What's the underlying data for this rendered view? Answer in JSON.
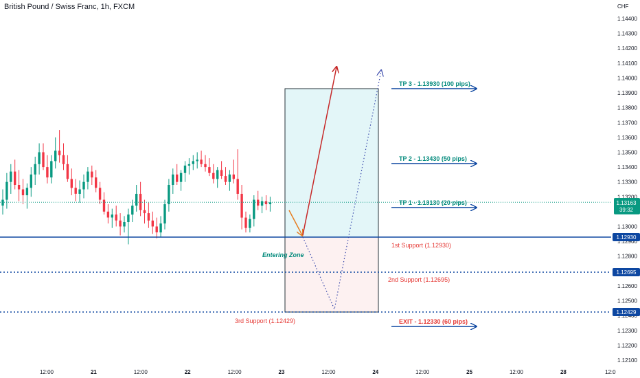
{
  "header": {
    "title": "British Pound / Swiss Franc, 1h, FXCM"
  },
  "chart_data": {
    "type": "candlestick",
    "currency": "CHF",
    "y_ticks": [
      "1.14400",
      "1.14300",
      "1.14200",
      "1.14100",
      "1.14000",
      "1.13900",
      "1.13800",
      "1.13700",
      "1.13600",
      "1.13500",
      "1.13400",
      "1.13300",
      "1.13200",
      "1.13100",
      "1.13000",
      "1.12900",
      "1.12800",
      "1.12700",
      "1.12600",
      "1.12500",
      "1.12400",
      "1.12300",
      "1.12200",
      "1.12100"
    ],
    "x_ticks": [
      "12:00",
      "21",
      "12:00",
      "22",
      "12:00",
      "23",
      "12:00",
      "24",
      "12:00",
      "25",
      "12:00",
      "28",
      "12:0"
    ],
    "ylim": [
      1.1208,
      1.1451
    ],
    "price": {
      "label": "1.13163",
      "countdown": "39:32",
      "value": 1.13163,
      "color": "#089981"
    },
    "candles": [
      [
        1.1314,
        1.1325,
        1.1308,
        1.1318
      ],
      [
        1.1318,
        1.1336,
        1.1312,
        1.133
      ],
      [
        1.133,
        1.1342,
        1.1322,
        1.1337
      ],
      [
        1.1337,
        1.1345,
        1.1325,
        1.1328
      ],
      [
        1.1328,
        1.1338,
        1.1317,
        1.1325
      ],
      [
        1.1325,
        1.1332,
        1.1315,
        1.1321
      ],
      [
        1.1321,
        1.1329,
        1.1312,
        1.1326
      ],
      [
        1.1326,
        1.134,
        1.132,
        1.1335
      ],
      [
        1.1335,
        1.1347,
        1.1328,
        1.1342
      ],
      [
        1.1342,
        1.1356,
        1.1335,
        1.135
      ],
      [
        1.135,
        1.1356,
        1.1338,
        1.134
      ],
      [
        1.134,
        1.1348,
        1.1329,
        1.1333
      ],
      [
        1.1333,
        1.1348,
        1.1329,
        1.1344
      ],
      [
        1.1344,
        1.136,
        1.1339,
        1.1351
      ],
      [
        1.1351,
        1.1365,
        1.1343,
        1.1348
      ],
      [
        1.1348,
        1.1356,
        1.1338,
        1.1342
      ],
      [
        1.1342,
        1.1348,
        1.133,
        1.1332
      ],
      [
        1.1332,
        1.1339,
        1.1321,
        1.1326
      ],
      [
        1.1326,
        1.1332,
        1.1317,
        1.1322
      ],
      [
        1.1322,
        1.1331,
        1.1316,
        1.1325
      ],
      [
        1.1325,
        1.1335,
        1.1319,
        1.133
      ],
      [
        1.133,
        1.134,
        1.1325,
        1.1337
      ],
      [
        1.1337,
        1.1341,
        1.1328,
        1.1333
      ],
      [
        1.1333,
        1.1338,
        1.1323,
        1.1326
      ],
      [
        1.1326,
        1.133,
        1.1315,
        1.1318
      ],
      [
        1.1318,
        1.1323,
        1.1308,
        1.131
      ],
      [
        1.131,
        1.1315,
        1.1302,
        1.1306
      ],
      [
        1.1306,
        1.1312,
        1.1299,
        1.1308
      ],
      [
        1.1308,
        1.1314,
        1.13,
        1.1304
      ],
      [
        1.1304,
        1.1309,
        1.1294,
        1.13
      ],
      [
        1.13,
        1.1307,
        1.1296,
        1.1303
      ],
      [
        1.1303,
        1.1312,
        1.1288,
        1.1308
      ],
      [
        1.1308,
        1.1318,
        1.1303,
        1.1314
      ],
      [
        1.1314,
        1.1328,
        1.131,
        1.1322
      ],
      [
        1.1322,
        1.133,
        1.1307,
        1.1311
      ],
      [
        1.1311,
        1.1318,
        1.1302,
        1.1309
      ],
      [
        1.1309,
        1.1316,
        1.1299,
        1.1304
      ],
      [
        1.1304,
        1.131,
        1.1295,
        1.13
      ],
      [
        1.13,
        1.1306,
        1.1292,
        1.1296
      ],
      [
        1.1296,
        1.1307,
        1.1293,
        1.1302
      ],
      [
        1.1302,
        1.1318,
        1.1298,
        1.1315
      ],
      [
        1.1315,
        1.1332,
        1.131,
        1.1328
      ],
      [
        1.1328,
        1.1339,
        1.1322,
        1.1335
      ],
      [
        1.1335,
        1.1342,
        1.1328,
        1.133
      ],
      [
        1.133,
        1.1338,
        1.1324,
        1.1336
      ],
      [
        1.1336,
        1.1344,
        1.133,
        1.1341
      ],
      [
        1.1341,
        1.1346,
        1.1335,
        1.1342
      ],
      [
        1.1342,
        1.1348,
        1.1338,
        1.1344
      ],
      [
        1.1344,
        1.135,
        1.1339,
        1.1345
      ],
      [
        1.1345,
        1.1351,
        1.134,
        1.1342
      ],
      [
        1.1342,
        1.1348,
        1.1337,
        1.134
      ],
      [
        1.134,
        1.1346,
        1.1334,
        1.1336
      ],
      [
        1.1336,
        1.1342,
        1.1329,
        1.1332
      ],
      [
        1.1332,
        1.134,
        1.1326,
        1.1338
      ],
      [
        1.1338,
        1.1344,
        1.1332,
        1.1334
      ],
      [
        1.1334,
        1.134,
        1.1328,
        1.133
      ],
      [
        1.133,
        1.1338,
        1.1324,
        1.1335
      ],
      [
        1.1335,
        1.1345,
        1.1329,
        1.1332
      ],
      [
        1.1332,
        1.1352,
        1.1318,
        1.1322
      ],
      [
        1.1322,
        1.1328,
        1.1298,
        1.1306
      ],
      [
        1.1306,
        1.131,
        1.1296,
        1.1299
      ],
      [
        1.1299,
        1.1308,
        1.1296,
        1.1305
      ],
      [
        1.1305,
        1.1321,
        1.13,
        1.1318
      ],
      [
        1.1318,
        1.1324,
        1.1311,
        1.1314
      ],
      [
        1.1314,
        1.132,
        1.1309,
        1.1317
      ],
      [
        1.1317,
        1.1321,
        1.1311,
        1.1315
      ],
      [
        1.1315,
        1.132,
        1.131,
        1.13163
      ]
    ]
  },
  "levels": {
    "support1_axis": "1.12930",
    "support2_axis": "1.12695",
    "support3_axis": "1.12429",
    "support1_value": 1.1293,
    "support2_value": 1.12695,
    "support3_value": 1.12429
  },
  "annotations": {
    "tp3": "TP 3 - 1.13930 (100 pips)",
    "tp2": "TP 2 - 1.13430 (50 pips)",
    "tp1": "TP 1 - 1.13130 (20 pips)",
    "exit": "EXIT - 1.12330 (60 pips)",
    "support1": "1st Support  (1.12930)",
    "support2": "2nd Support (1.12695)",
    "support3": "3rd Support (1.12429)",
    "entering_zone": "Entering Zone"
  },
  "colors": {
    "up": "#089981",
    "down": "#f23645",
    "blue": "#0d47a1",
    "target_text": "#00897b",
    "stop_text": "#e53935",
    "arrow": "#c62828",
    "dotted": "#3949ab"
  }
}
